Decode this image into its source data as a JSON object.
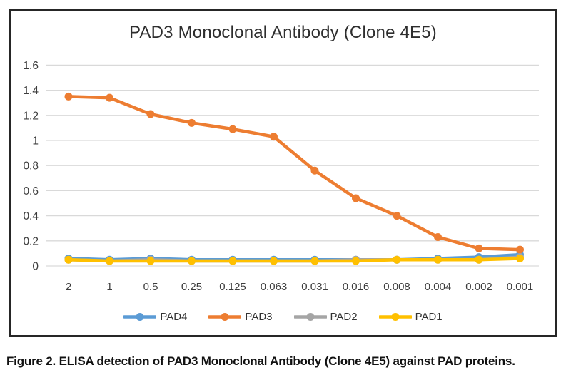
{
  "chart_data": {
    "type": "line",
    "title": "PAD3 Monoclonal Antibody (Clone 4E5)",
    "xlabel": "",
    "ylabel": "",
    "categories": [
      "2",
      "1",
      "0.5",
      "0.25",
      "0.125",
      "0.063",
      "0.031",
      "0.016",
      "0.008",
      "0.004",
      "0.002",
      "0.001"
    ],
    "series": [
      {
        "name": "PAD4",
        "color": "#5B9BD5",
        "values": [
          0.06,
          0.05,
          0.06,
          0.05,
          0.05,
          0.05,
          0.05,
          0.05,
          0.05,
          0.06,
          0.07,
          0.09
        ]
      },
      {
        "name": "PAD3",
        "color": "#ED7D31",
        "values": [
          1.35,
          1.34,
          1.21,
          1.14,
          1.09,
          1.03,
          0.76,
          0.54,
          0.4,
          0.23,
          0.14,
          0.13
        ]
      },
      {
        "name": "PAD2",
        "color": "#A5A5A5",
        "values": [
          0.05,
          0.04,
          0.05,
          0.04,
          0.04,
          0.04,
          0.04,
          0.05,
          0.05,
          0.05,
          0.05,
          0.07
        ]
      },
      {
        "name": "PAD1",
        "color": "#FFC000",
        "values": [
          0.05,
          0.04,
          0.04,
          0.04,
          0.04,
          0.04,
          0.04,
          0.04,
          0.05,
          0.05,
          0.05,
          0.06
        ]
      }
    ],
    "y_ticks": [
      0,
      0.2,
      0.4,
      0.6,
      0.8,
      1,
      1.2,
      1.4,
      1.6
    ],
    "y_tick_labels": [
      "0",
      "0.2",
      "0.4",
      "0.6",
      "0.8",
      "1",
      "1.2",
      "1.4",
      "1.6"
    ],
    "ylim": [
      0,
      1.7
    ],
    "grid": true,
    "gridline_color": "#D9D9D9",
    "legend_position": "bottom"
  },
  "caption": "Figure 2. ELISA detection of PAD3 Monoclonal Antibody (Clone 4E5) against PAD proteins."
}
